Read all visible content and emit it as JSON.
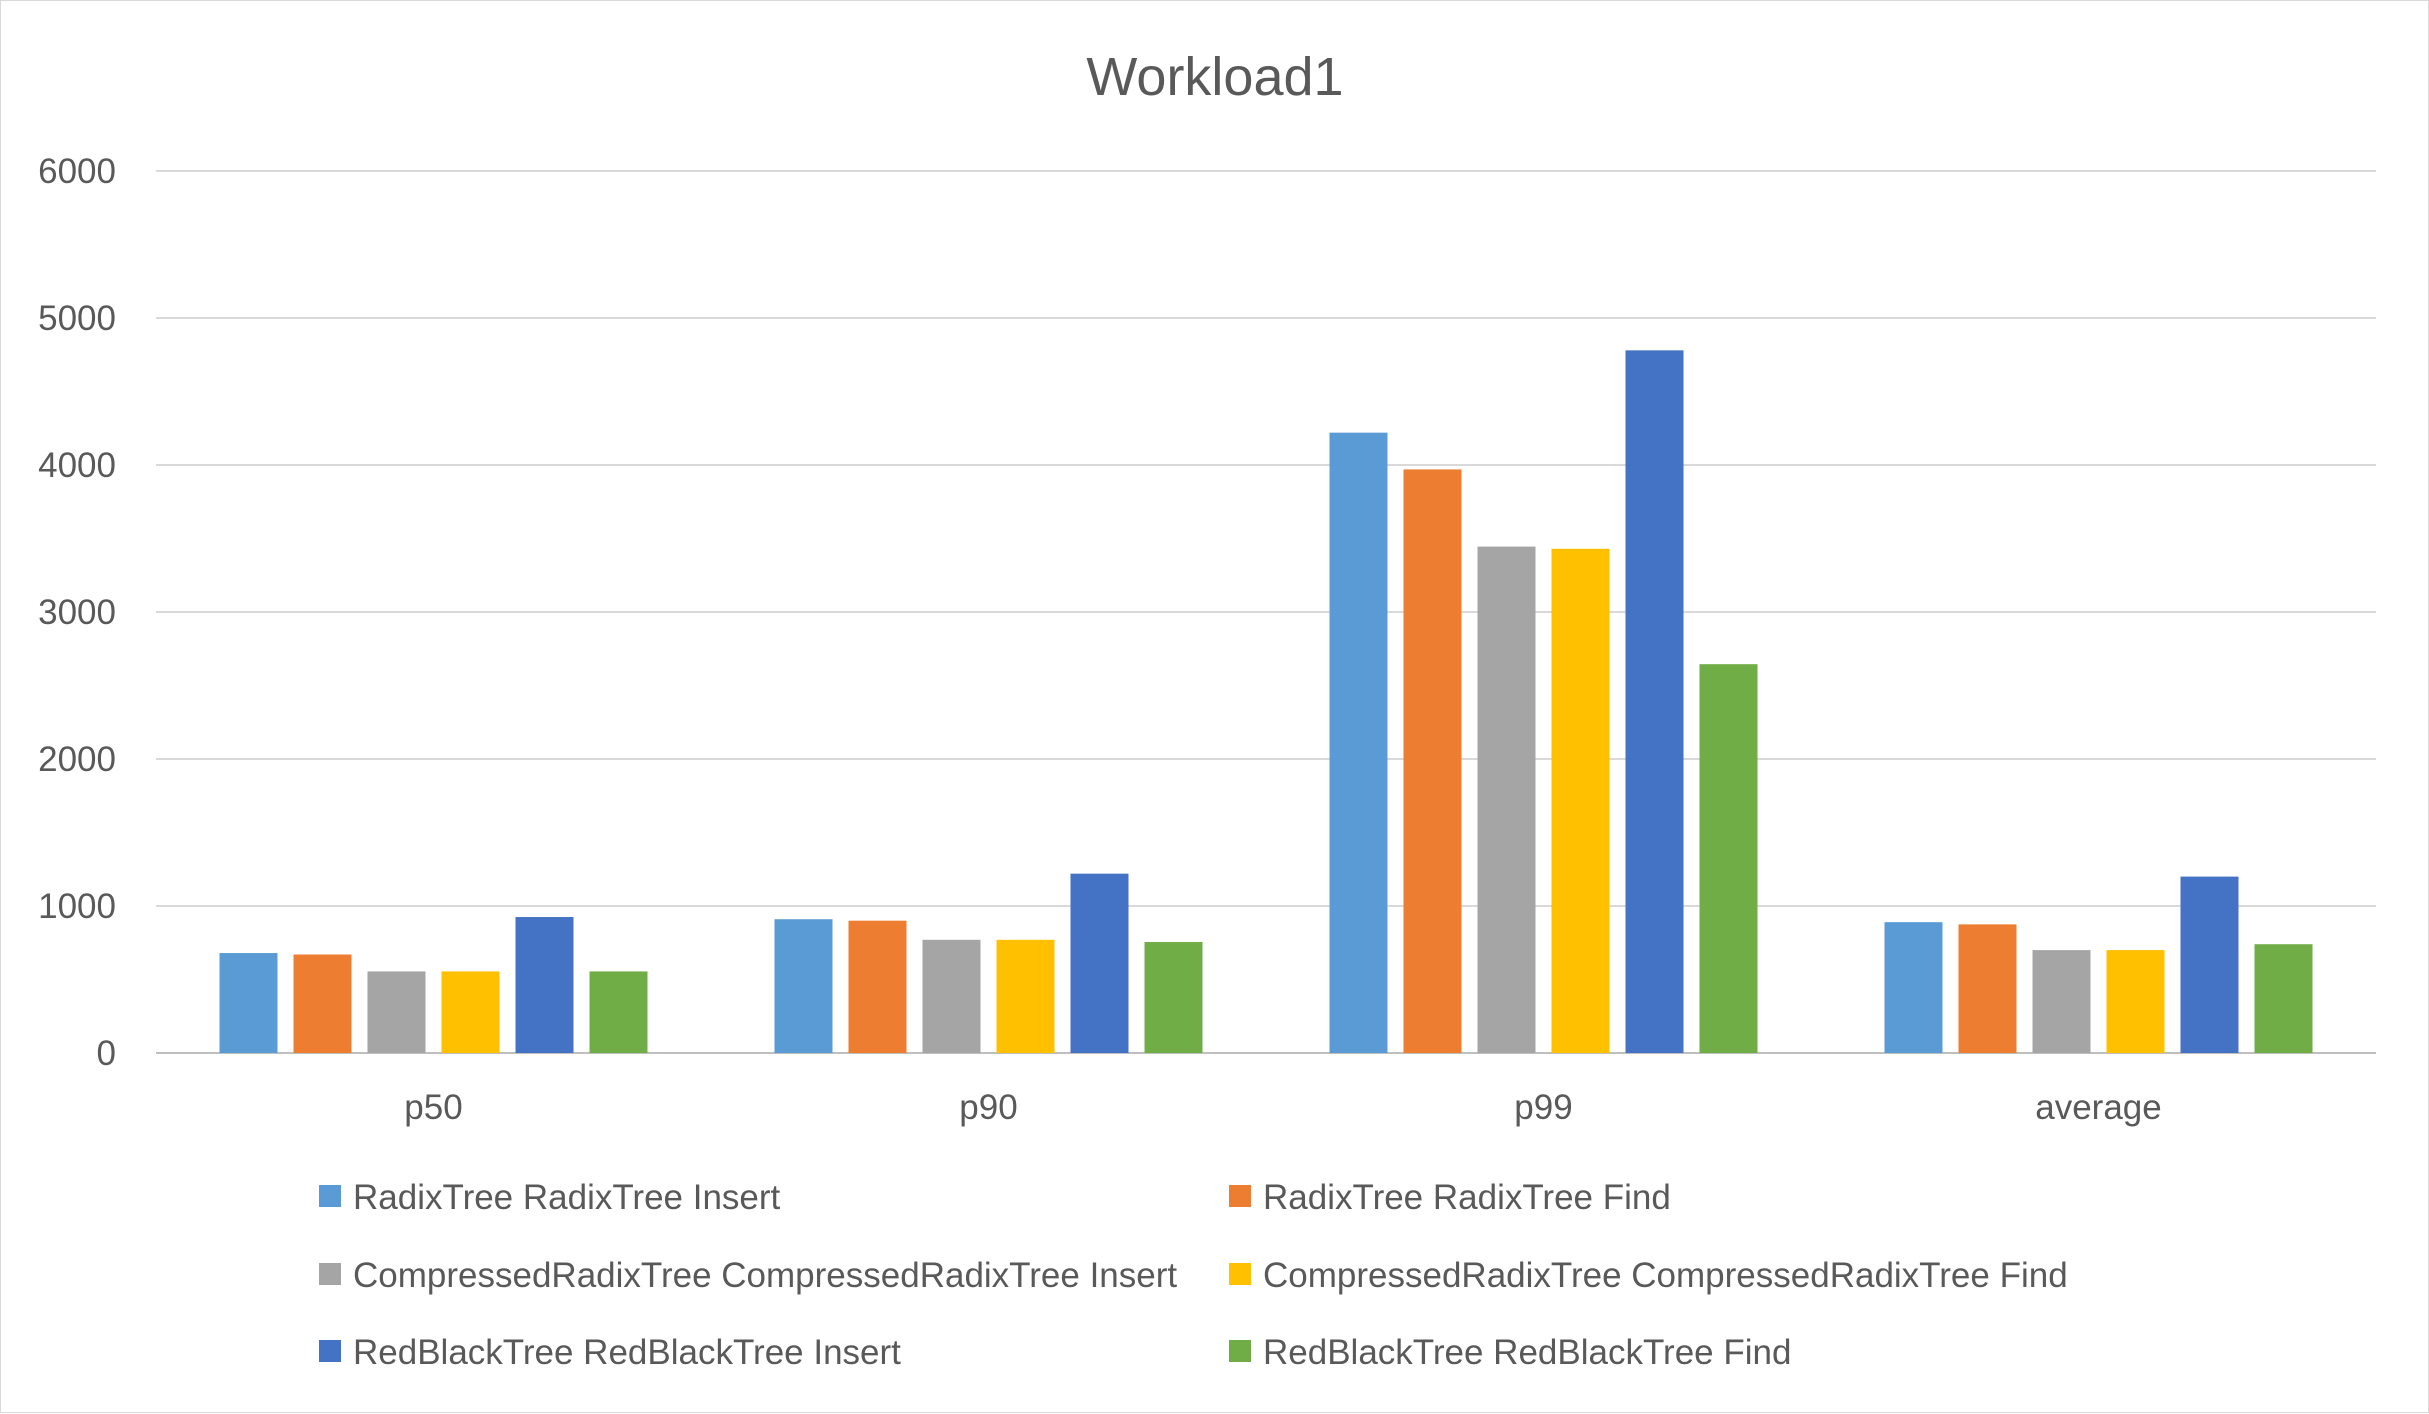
{
  "chart_data": {
    "type": "bar",
    "title": "Workload1",
    "xlabel": "",
    "ylabel": "",
    "categories": [
      "p50",
      "p90",
      "p99",
      "average"
    ],
    "ylim": [
      0,
      6000
    ],
    "yticks": [
      0,
      1000,
      2000,
      3000,
      4000,
      5000,
      6000
    ],
    "grid": true,
    "legend_position": "bottom",
    "series": [
      {
        "name": "RadixTree RadixTree Insert",
        "color": "#5b9bd5",
        "values": [
          680,
          910,
          4220,
          890
        ]
      },
      {
        "name": "RadixTree RadixTree Find",
        "color": "#ed7d31",
        "values": [
          670,
          900,
          3970,
          875
        ]
      },
      {
        "name": "CompressedRadixTree CompressedRadixTree Insert",
        "color": "#a5a5a5",
        "values": [
          555,
          770,
          3445,
          700
        ]
      },
      {
        "name": "CompressedRadixTree CompressedRadixTree Find",
        "color": "#ffc000",
        "values": [
          555,
          770,
          3430,
          700
        ]
      },
      {
        "name": "RedBlackTree RedBlackTree Insert",
        "color": "#4472c4",
        "values": [
          925,
          1220,
          4780,
          1200
        ]
      },
      {
        "name": "RedBlackTree RedBlackTree Find",
        "color": "#70ad47",
        "values": [
          555,
          755,
          2645,
          740
        ]
      }
    ]
  }
}
